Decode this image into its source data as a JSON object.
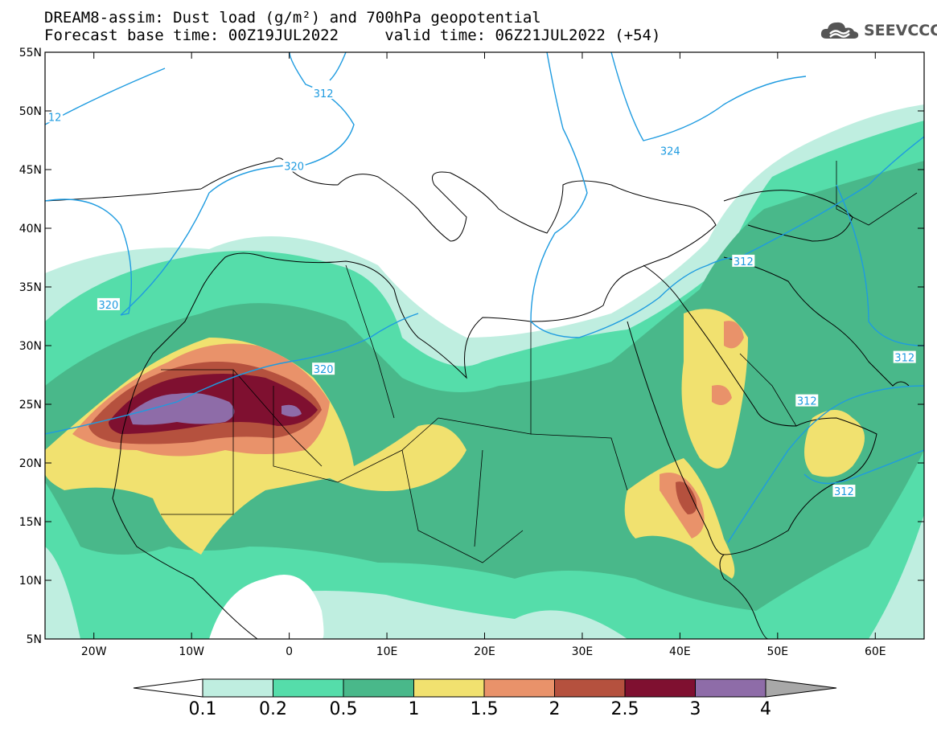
{
  "title": {
    "line1": "DREAM8-assim: Dust load (g/m²) and 700hPa geopotential",
    "line2_base": "Forecast base time: 00Z19JUL2022",
    "line2_valid": "valid time: 06Z21JUL2022 (+54)"
  },
  "logo": {
    "text": "SEEVCCC",
    "icon": "cloud-logo-icon"
  },
  "map": {
    "lon_range": [
      -25,
      65
    ],
    "lat_range": [
      5,
      55
    ],
    "lon_ticks": [
      {
        "value": -20,
        "label": "20W"
      },
      {
        "value": -10,
        "label": "10W"
      },
      {
        "value": 0,
        "label": "0"
      },
      {
        "value": 10,
        "label": "10E"
      },
      {
        "value": 20,
        "label": "20E"
      },
      {
        "value": 30,
        "label": "30E"
      },
      {
        "value": 40,
        "label": "40E"
      },
      {
        "value": 50,
        "label": "50E"
      },
      {
        "value": 60,
        "label": "60E"
      }
    ],
    "lat_ticks": [
      {
        "value": 55,
        "label": "55N"
      },
      {
        "value": 50,
        "label": "50N"
      },
      {
        "value": 45,
        "label": "45N"
      },
      {
        "value": 40,
        "label": "40N"
      },
      {
        "value": 35,
        "label": "35N"
      },
      {
        "value": 30,
        "label": "30N"
      },
      {
        "value": 25,
        "label": "25N"
      },
      {
        "value": 20,
        "label": "20N"
      },
      {
        "value": 15,
        "label": "15N"
      },
      {
        "value": 10,
        "label": "10N"
      },
      {
        "value": 5,
        "label": "5N"
      }
    ],
    "geopotential_labels": [
      {
        "text": "12",
        "lon": -24,
        "lat": 49.5
      },
      {
        "text": "312",
        "lon": 3.5,
        "lat": 51.5
      },
      {
        "text": "320",
        "lon": 0.5,
        "lat": 45.3
      },
      {
        "text": "324",
        "lon": 39,
        "lat": 46.6
      },
      {
        "text": "320",
        "lon": -18.5,
        "lat": 33.5
      },
      {
        "text": "320",
        "lon": 3.5,
        "lat": 28
      },
      {
        "text": "312",
        "lon": 46.5,
        "lat": 37.2
      },
      {
        "text": "312",
        "lon": 63,
        "lat": 29
      },
      {
        "text": "312",
        "lon": 53,
        "lat": 25.3
      },
      {
        "text": "312",
        "lon": 56.8,
        "lat": 17.6
      }
    ]
  },
  "colorbar": {
    "colors": [
      "#bfeee0",
      "#55ddaa",
      "#49b88a",
      "#f1e16f",
      "#e9926a",
      "#b5513e",
      "#7f1030",
      "#8e6ca8"
    ],
    "under_color": "#ffffff",
    "over_color": "#a8a8a8",
    "labels": [
      "0.1",
      "0.2",
      "0.5",
      "1",
      "1.5",
      "2",
      "2.5",
      "3",
      "4"
    ]
  }
}
